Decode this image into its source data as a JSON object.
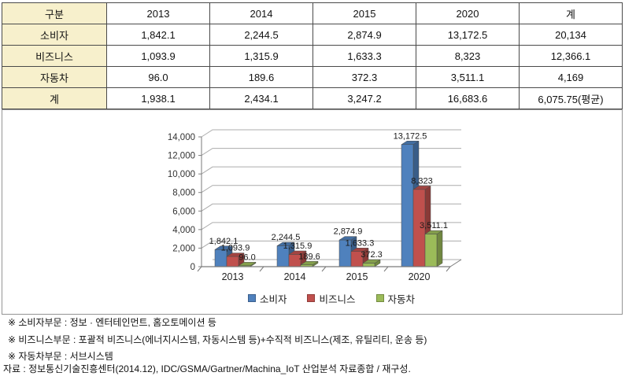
{
  "table": {
    "header": [
      "구분",
      "2013",
      "2014",
      "2015",
      "2020",
      "계"
    ],
    "rows": [
      {
        "label": "소비자",
        "values": [
          "1,842.1",
          "2,244.5",
          "2,874.9",
          "13,172.5",
          "20,134"
        ]
      },
      {
        "label": "비즈니스",
        "values": [
          "1,093.9",
          "1,315.9",
          "1,633.3",
          "8,323",
          "12,366.1"
        ]
      },
      {
        "label": "자동차",
        "values": [
          "96.0",
          "189.6",
          "372.3",
          "3,511.1",
          "4,169"
        ]
      },
      {
        "label": "계",
        "values": [
          "1,938.1",
          "2,434.1",
          "3,247.2",
          "16,683.6",
          "6,075.75(평균)"
        ]
      }
    ]
  },
  "chart_data": {
    "type": "bar",
    "style": "3d-clustered-column",
    "title": "",
    "xlabel": "",
    "ylabel": "",
    "categories": [
      "2013",
      "2014",
      "2015",
      "2020"
    ],
    "series": [
      {
        "name": "소비자",
        "color": "#4F81BD",
        "values": [
          1842.1,
          2244.5,
          2874.9,
          13172.5
        ],
        "labels": [
          "1,842.1",
          "2,244.5",
          "2,874.9",
          "13,172.5"
        ]
      },
      {
        "name": "비즈니스",
        "color": "#C0504D",
        "values": [
          1093.9,
          1315.9,
          1633.3,
          8323
        ],
        "labels": [
          "1,093.9",
          "1,315.9",
          "1,633.3",
          "8,323"
        ]
      },
      {
        "name": "자동차",
        "color": "#9BBB59",
        "values": [
          96.0,
          189.6,
          372.3,
          3511.1
        ],
        "labels": [
          "96.0",
          "189.6",
          "372.3",
          "3,511.1"
        ]
      }
    ],
    "ylim": [
      0,
      14000
    ],
    "ytick_step": 2000,
    "ytick_labels": [
      "0",
      "2,000",
      "4,000",
      "6,000",
      "8,000",
      "10,000",
      "12,000",
      "14,000"
    ],
    "grid": true,
    "legend_position": "bottom",
    "grid_color": "#ACACAC",
    "axis_color": "#7a7a7a",
    "label_color": "#1a1a1a"
  },
  "footnotes": {
    "lines": [
      "※ 소비자부문 : 정보 · 엔터테인먼트, 홈오토메이션 등",
      "※ 비즈니스부문 : 포괄적 비즈니스(에너지시스템, 자동시스템 등)+수직적 비즈니스(제조, 유틸리티, 운송 등)",
      "※ 자동차부문 : 서브시스템",
      "자료 : 정보통신기술진흥센터(2014.12), IDC/GSMA/Gartner/Machina_IoT 산업분석 자료종합 / 재구성."
    ]
  }
}
